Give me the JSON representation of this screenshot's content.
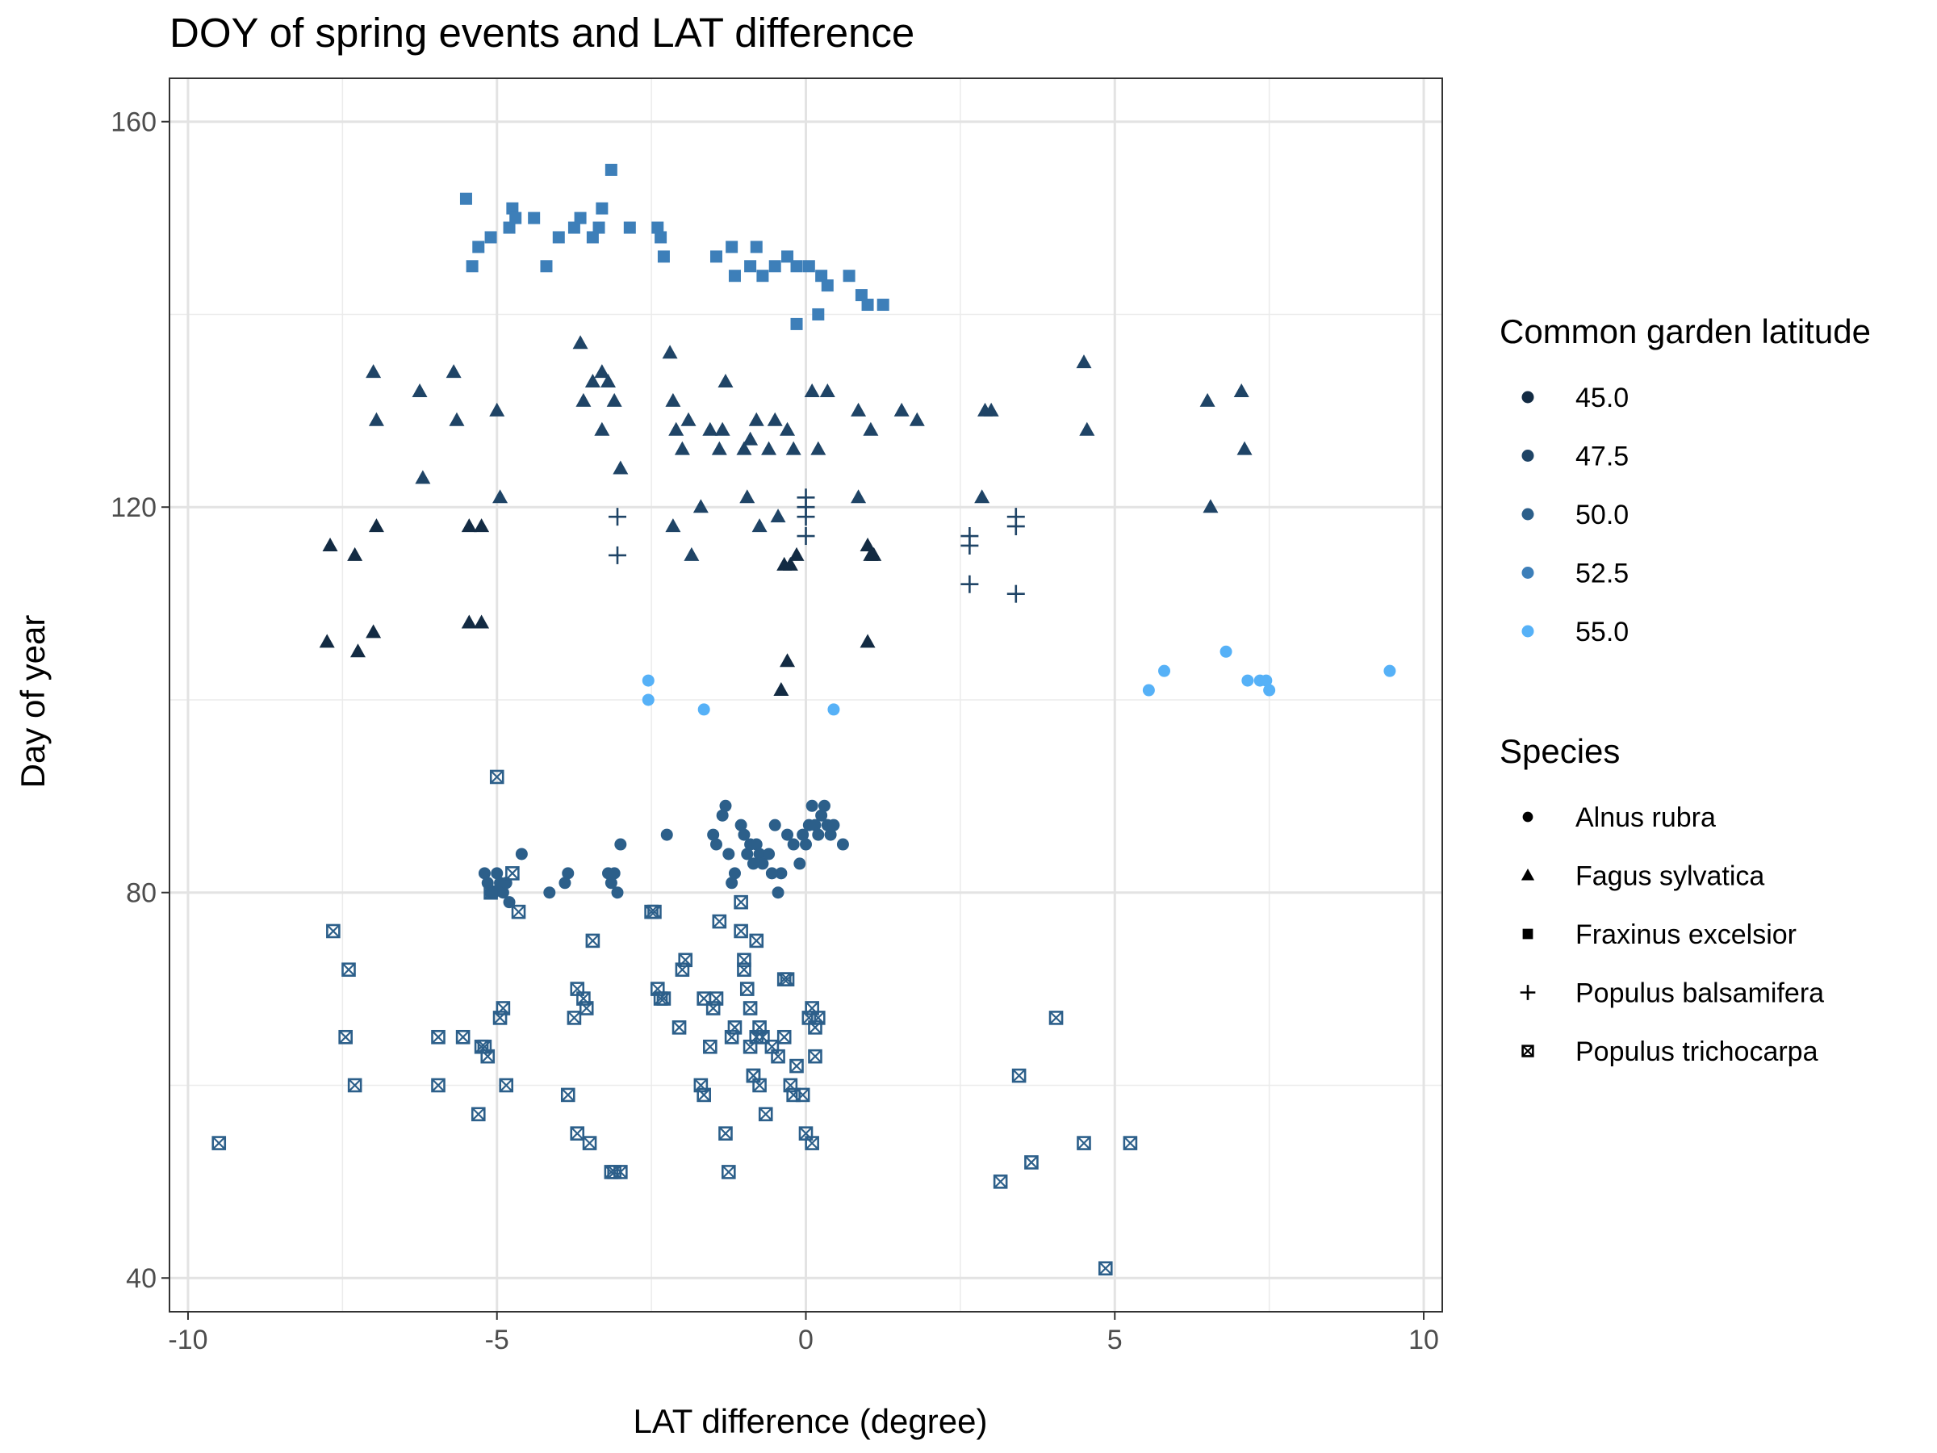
{
  "chart_data": {
    "type": "scatter",
    "title": "DOY of spring events and LAT difference",
    "xlabel": "LAT difference (degree)",
    "ylabel": "Day of year",
    "xlim": [
      -10.3,
      10.3
    ],
    "ylim": [
      36.5,
      164.5
    ],
    "x_ticks": [
      -10,
      -5,
      0,
      5,
      10
    ],
    "x_tick_labels": [
      "-10",
      "-5",
      "0",
      "5",
      "10"
    ],
    "y_ticks": [
      40,
      80,
      120,
      160
    ],
    "y_tick_labels": [
      "40",
      "80",
      "120",
      "160"
    ],
    "grid": true,
    "legend_position": "right",
    "color_legend": {
      "title": "Common garden latitude",
      "entries": [
        {
          "label": "45.0",
          "color": "#132b43"
        },
        {
          "label": "47.5",
          "color": "#1f4466"
        },
        {
          "label": "50.0",
          "color": "#2c5f8a"
        },
        {
          "label": "52.5",
          "color": "#3d7fb9"
        },
        {
          "label": "55.0",
          "color": "#56b1f7"
        }
      ]
    },
    "shape_legend": {
      "title": "Species",
      "entries": [
        {
          "label": "Alnus rubra",
          "shape": "circle"
        },
        {
          "label": "Fagus sylvatica",
          "shape": "triangle"
        },
        {
          "label": "Fraxinus excelsior",
          "shape": "square"
        },
        {
          "label": "Populus balsamifera",
          "shape": "plus"
        },
        {
          "label": "Populus trichocarpa",
          "shape": "boxed-x"
        }
      ]
    },
    "series": [
      {
        "species": "Fraxinus excelsior",
        "shape": "square",
        "color": "#3d7fb9",
        "x": [
          -5.5,
          -5.4,
          -5.3,
          -5.1,
          -4.8,
          -4.75,
          -4.7,
          -4.4,
          -4.2,
          -4.0,
          -3.75,
          -3.65,
          -3.45,
          -3.35,
          -3.3,
          -3.15,
          -2.85,
          -2.4,
          -2.35,
          -2.3,
          -1.45,
          -1.2,
          -1.15,
          -0.9,
          -0.7,
          -0.5,
          -0.3,
          -0.15,
          0.05,
          0.25,
          0.35,
          0.7,
          0.9,
          1.0,
          1.25,
          -0.15,
          0.2,
          -0.8
        ],
        "y": [
          152,
          145,
          147,
          148,
          149,
          151,
          150,
          150,
          145,
          148,
          149,
          150,
          148,
          149,
          151,
          155,
          149,
          149,
          148,
          146,
          146,
          147,
          144,
          145,
          144,
          145,
          146,
          145,
          145,
          144,
          143,
          144,
          142,
          141,
          141,
          139,
          140,
          147
        ]
      },
      {
        "species": "Fagus sylvatica",
        "shape": "triangle",
        "color": "#1f4466",
        "x": [
          -7.0,
          -6.95,
          -6.25,
          -6.2,
          -5.7,
          -5.65,
          -5.0,
          -4.95,
          -3.65,
          -3.6,
          -3.45,
          -3.3,
          -3.2,
          -3.0,
          -3.1,
          -2.2,
          -2.15,
          -2.1,
          -2.0,
          -1.9,
          -1.7,
          -1.55,
          -1.4,
          -1.3,
          -1.0,
          -0.9,
          -0.8,
          -0.6,
          -0.5,
          -0.3,
          -0.2,
          0.1,
          0.2,
          0.35,
          0.85,
          1.05,
          1.55,
          1.8,
          2.9,
          3.0,
          4.5,
          4.55,
          6.5,
          6.55,
          7.05,
          7.1,
          -2.15,
          -1.85,
          -1.35,
          -0.95,
          -0.75,
          -0.45,
          0.85,
          2.85,
          -3.3
        ],
        "y": [
          134,
          129,
          132,
          123,
          134,
          129,
          130,
          121,
          137,
          131,
          133,
          128,
          133,
          124,
          131,
          136,
          131,
          128,
          126,
          129,
          120,
          128,
          126,
          133,
          126,
          127,
          129,
          126,
          129,
          128,
          126,
          132,
          126,
          132,
          130,
          128,
          130,
          129,
          130,
          130,
          135,
          128,
          131,
          120,
          132,
          126,
          118,
          115,
          128,
          121,
          118,
          119,
          121,
          121,
          134
        ]
      },
      {
        "species": "Fagus sylvatica",
        "shape": "triangle",
        "color": "#132b43",
        "x": [
          -7.7,
          -7.3,
          -6.95,
          -7.75,
          -7.25,
          -7.0,
          -5.45,
          -5.25,
          -5.45,
          -5.25,
          -0.35,
          -0.25,
          -0.15,
          -0.3,
          1.0,
          1.05,
          1.1,
          1.0,
          -0.4
        ],
        "y": [
          116,
          115,
          118,
          106,
          105,
          107,
          118,
          118,
          108,
          108,
          114,
          114,
          115,
          104,
          116,
          115,
          115,
          106,
          101
        ]
      },
      {
        "species": "Populus balsamifera",
        "shape": "plus",
        "color": "#1f4466",
        "x": [
          -3.05,
          -3.05,
          0.0,
          0.0,
          0.0,
          0.0,
          2.65,
          2.65,
          2.65,
          3.4,
          3.4,
          3.4
        ],
        "y": [
          119,
          115,
          121,
          119,
          117,
          120,
          117,
          116,
          112,
          118,
          119,
          111
        ]
      },
      {
        "species": "Alnus rubra",
        "shape": "circle",
        "color": "#56b1f7",
        "x": [
          -2.55,
          -2.55,
          -1.65,
          0.45,
          5.55,
          5.8,
          6.8,
          7.15,
          7.35,
          7.45,
          7.5,
          9.45
        ],
        "y": [
          102,
          100,
          99,
          99,
          101,
          103,
          105,
          102,
          102,
          102,
          101,
          103
        ]
      },
      {
        "species": "Alnus rubra",
        "shape": "circle",
        "color": "#2c5f8a",
        "x": [
          -5.2,
          -5.15,
          -5.1,
          -5.05,
          -5.0,
          -4.95,
          -4.9,
          -4.85,
          -4.8,
          -4.6,
          -4.15,
          -3.9,
          -3.85,
          -3.2,
          -3.15,
          -3.1,
          -3.05,
          -3.0,
          -2.25,
          -1.5,
          -1.45,
          -1.35,
          -1.3,
          -1.25,
          -1.15,
          -1.05,
          -1.0,
          -0.95,
          -0.9,
          -0.85,
          -0.8,
          -0.75,
          -0.7,
          -0.6,
          -0.5,
          -0.45,
          -0.4,
          -0.3,
          -0.2,
          -0.1,
          -0.05,
          0.0,
          0.05,
          0.1,
          0.15,
          0.2,
          0.25,
          0.3,
          0.35,
          0.4,
          0.45,
          0.6,
          -1.2,
          -0.55
        ],
        "y": [
          82,
          81,
          80,
          80,
          82,
          81,
          80,
          81,
          79,
          84,
          80,
          81,
          82,
          82,
          81,
          82,
          80,
          85,
          86,
          86,
          85,
          88,
          89,
          84,
          82,
          87,
          86,
          84,
          85,
          83,
          85,
          84,
          83,
          84,
          87,
          80,
          82,
          86,
          85,
          83,
          86,
          85,
          87,
          89,
          87,
          86,
          88,
          89,
          87,
          86,
          87,
          85,
          81,
          82
        ]
      },
      {
        "species": "Populus trichocarpa",
        "shape": "boxed-x",
        "color": "#2c5f8a",
        "x": [
          -9.5,
          -7.65,
          -7.4,
          -7.45,
          -7.3,
          -5.95,
          -5.95,
          -5.55,
          -5.3,
          -5.25,
          -5.2,
          -5.15,
          -5.1,
          -5.0,
          -4.95,
          -4.9,
          -4.85,
          -4.75,
          -4.65,
          -3.85,
          -3.7,
          -3.75,
          -3.7,
          -3.6,
          -3.55,
          -3.5,
          -3.45,
          -3.15,
          -3.1,
          -2.5,
          -2.45,
          -2.4,
          -2.35,
          -2.3,
          -2.05,
          -2.0,
          -1.95,
          -1.7,
          -1.65,
          -1.65,
          -1.55,
          -1.45,
          -1.4,
          -1.3,
          -1.25,
          -1.2,
          -1.15,
          -1.0,
          -1.05,
          -0.95,
          -0.9,
          -0.8,
          -0.85,
          -0.75,
          -0.7,
          -0.65,
          -0.55,
          -0.45,
          -0.35,
          -0.3,
          -0.2,
          -0.15,
          -0.05,
          0.0,
          0.1,
          0.15,
          0.2,
          0.15,
          0.1,
          0.05,
          -0.8,
          -0.75,
          -0.85,
          -0.9,
          -1.0,
          -1.05,
          -1.5,
          -0.35,
          -0.25,
          3.15,
          3.45,
          3.65,
          4.05,
          4.5,
          4.85,
          5.25,
          -3.0
        ],
        "y": [
          54,
          76,
          72,
          65,
          60,
          65,
          60,
          65,
          57,
          64,
          64,
          63,
          80,
          92,
          67,
          68,
          60,
          82,
          78,
          59,
          55,
          67,
          70,
          69,
          68,
          54,
          75,
          51,
          51,
          78,
          78,
          70,
          69,
          69,
          66,
          72,
          73,
          60,
          59,
          69,
          64,
          69,
          77,
          55,
          51,
          65,
          66,
          73,
          76,
          70,
          68,
          75,
          61,
          60,
          65,
          57,
          64,
          63,
          71,
          71,
          59,
          62,
          59,
          55,
          54,
          63,
          67,
          66,
          68,
          67,
          65,
          66,
          61,
          64,
          72,
          79,
          68,
          65,
          60,
          50,
          61,
          52,
          67,
          54,
          41,
          54,
          51
        ]
      }
    ]
  }
}
